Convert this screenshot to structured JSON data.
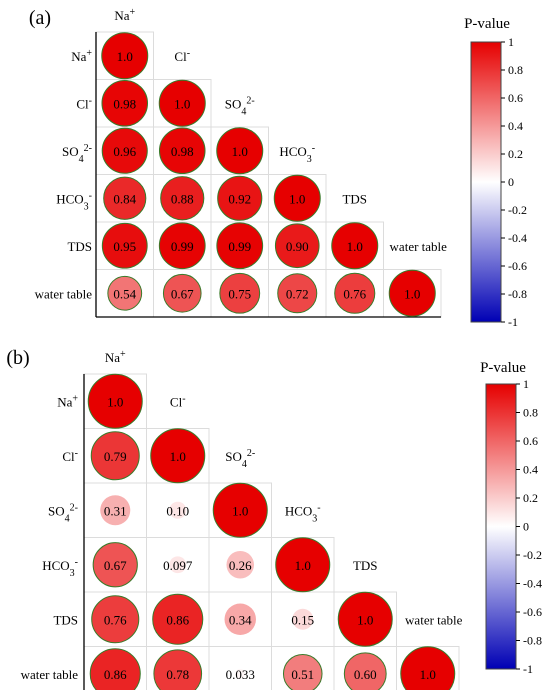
{
  "chart_data": [
    {
      "type": "heatmap",
      "panel_label": "(a)",
      "legend_title": "P-value",
      "colorbar_ticks": [
        "1",
        "0.8",
        "0.6",
        "0.4",
        "0.2",
        "0",
        "-0.2",
        "-0.4",
        "-0.6",
        "-0.8",
        "-1"
      ],
      "colorbar_range": [
        -1,
        1
      ],
      "variables": [
        "Na+",
        "Cl-",
        "SO42-",
        "HCO3-",
        "TDS",
        "water table"
      ],
      "cells": [
        {
          "row": 0,
          "col": 0,
          "value": 1.0,
          "label": "1.0"
        },
        {
          "row": 1,
          "col": 0,
          "value": 0.98,
          "label": "0.98"
        },
        {
          "row": 1,
          "col": 1,
          "value": 1.0,
          "label": "1.0"
        },
        {
          "row": 2,
          "col": 0,
          "value": 0.96,
          "label": "0.96"
        },
        {
          "row": 2,
          "col": 1,
          "value": 0.98,
          "label": "0.98"
        },
        {
          "row": 2,
          "col": 2,
          "value": 1.0,
          "label": "1.0"
        },
        {
          "row": 3,
          "col": 0,
          "value": 0.84,
          "label": "0.84"
        },
        {
          "row": 3,
          "col": 1,
          "value": 0.88,
          "label": "0.88"
        },
        {
          "row": 3,
          "col": 2,
          "value": 0.92,
          "label": "0.92"
        },
        {
          "row": 3,
          "col": 3,
          "value": 1.0,
          "label": "1.0"
        },
        {
          "row": 4,
          "col": 0,
          "value": 0.95,
          "label": "0.95"
        },
        {
          "row": 4,
          "col": 1,
          "value": 0.99,
          "label": "0.99"
        },
        {
          "row": 4,
          "col": 2,
          "value": 0.99,
          "label": "0.99"
        },
        {
          "row": 4,
          "col": 3,
          "value": 0.9,
          "label": "0.90"
        },
        {
          "row": 4,
          "col": 4,
          "value": 1.0,
          "label": "1.0"
        },
        {
          "row": 5,
          "col": 0,
          "value": 0.54,
          "label": "0.54"
        },
        {
          "row": 5,
          "col": 1,
          "value": 0.67,
          "label": "0.67"
        },
        {
          "row": 5,
          "col": 2,
          "value": 0.75,
          "label": "0.75"
        },
        {
          "row": 5,
          "col": 3,
          "value": 0.72,
          "label": "0.72"
        },
        {
          "row": 5,
          "col": 4,
          "value": 0.76,
          "label": "0.76"
        },
        {
          "row": 5,
          "col": 5,
          "value": 1.0,
          "label": "1.0"
        }
      ]
    },
    {
      "type": "heatmap",
      "panel_label": "(b)",
      "legend_title": "P-value",
      "colorbar_ticks": [
        "1",
        "0.8",
        "0.6",
        "0.4",
        "0.2",
        "0",
        "-0.2",
        "-0.4",
        "-0.6",
        "-0.8",
        "-1"
      ],
      "colorbar_range": [
        -1,
        1
      ],
      "variables": [
        "Na+",
        "Cl-",
        "SO42-",
        "HCO3-",
        "TDS",
        "water table"
      ],
      "cells": [
        {
          "row": 0,
          "col": 0,
          "value": 1.0,
          "label": "1.0"
        },
        {
          "row": 1,
          "col": 0,
          "value": 0.79,
          "label": "0.79"
        },
        {
          "row": 1,
          "col": 1,
          "value": 1.0,
          "label": "1.0"
        },
        {
          "row": 2,
          "col": 0,
          "value": 0.31,
          "label": "0.31"
        },
        {
          "row": 2,
          "col": 1,
          "value": 0.1,
          "label": "0.10"
        },
        {
          "row": 2,
          "col": 2,
          "value": 1.0,
          "label": "1.0"
        },
        {
          "row": 3,
          "col": 0,
          "value": 0.67,
          "label": "0.67"
        },
        {
          "row": 3,
          "col": 1,
          "value": 0.097,
          "label": "0.097"
        },
        {
          "row": 3,
          "col": 2,
          "value": 0.26,
          "label": "0.26"
        },
        {
          "row": 3,
          "col": 3,
          "value": 1.0,
          "label": "1.0"
        },
        {
          "row": 4,
          "col": 0,
          "value": 0.76,
          "label": "0.76"
        },
        {
          "row": 4,
          "col": 1,
          "value": 0.86,
          "label": "0.86"
        },
        {
          "row": 4,
          "col": 2,
          "value": 0.34,
          "label": "0.34"
        },
        {
          "row": 4,
          "col": 3,
          "value": 0.15,
          "label": "0.15"
        },
        {
          "row": 4,
          "col": 4,
          "value": 1.0,
          "label": "1.0"
        },
        {
          "row": 5,
          "col": 0,
          "value": 0.86,
          "label": "0.86"
        },
        {
          "row": 5,
          "col": 1,
          "value": 0.78,
          "label": "0.78"
        },
        {
          "row": 5,
          "col": 2,
          "value": 0.033,
          "label": "0.033"
        },
        {
          "row": 5,
          "col": 3,
          "value": 0.51,
          "label": "0.51"
        },
        {
          "row": 5,
          "col": 4,
          "value": 0.6,
          "label": "0.60"
        },
        {
          "row": 5,
          "col": 5,
          "value": 1.0,
          "label": "1.0"
        }
      ]
    }
  ],
  "colors": {
    "positive": "#e60000",
    "zero": "#ffffff",
    "negative": "#0000b4",
    "cell_border": "#dcdcdc",
    "circle_edge": "#3a7a2a"
  }
}
